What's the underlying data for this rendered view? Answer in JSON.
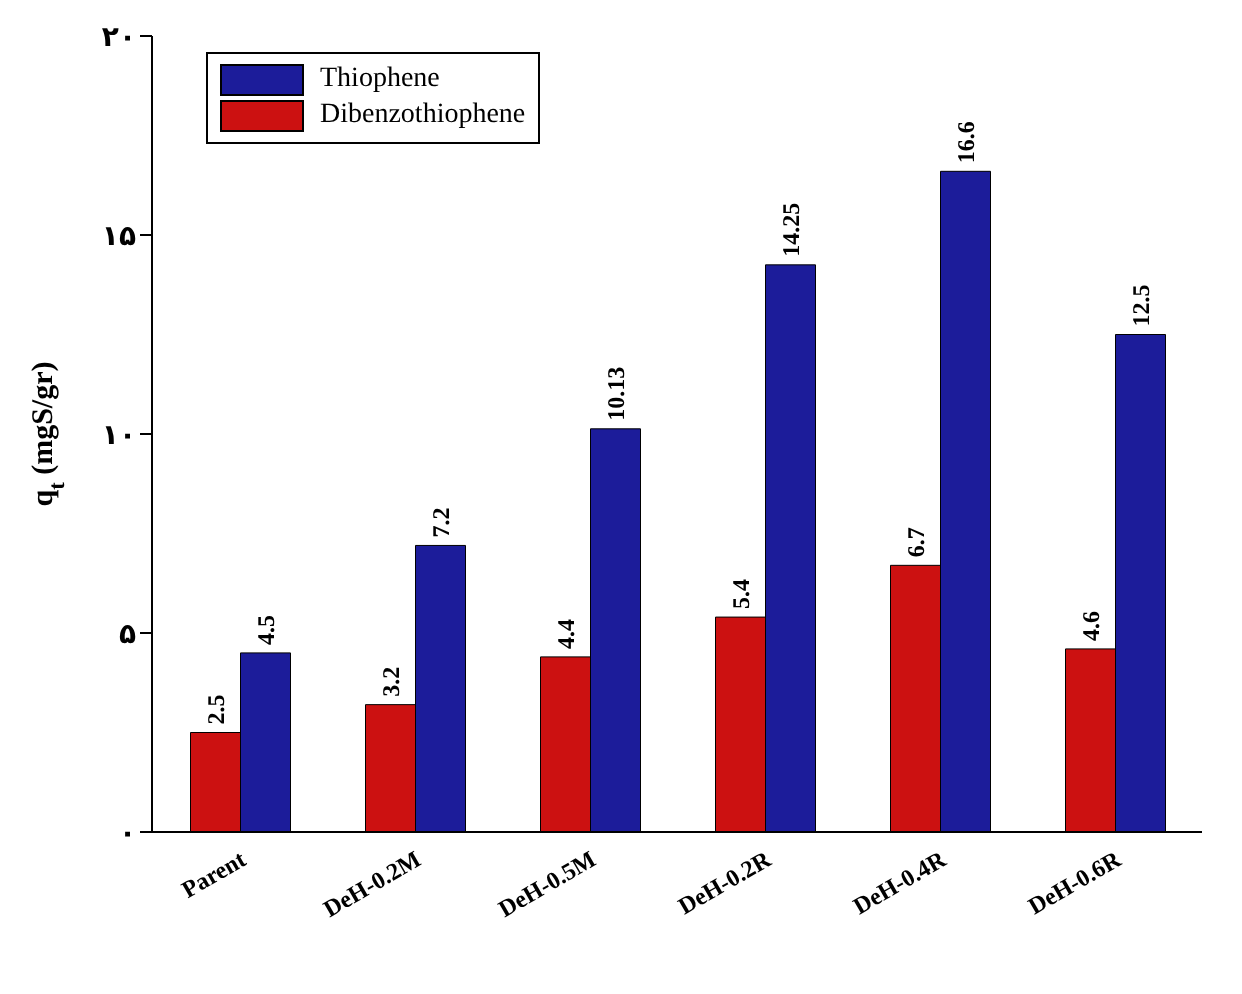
{
  "chart_data": {
    "type": "bar",
    "ylabel": "q$_{t}$ (mgS/gr)",
    "categories": [
      "Parent",
      "DeH-0.2M",
      "DeH-0.5M",
      "DeH-0.2R",
      "DeH-0.4R",
      "DeH-0.6R"
    ],
    "series": [
      {
        "name": "Dibenzothiophene",
        "color": "#cc1111",
        "values": [
          2.5,
          3.2,
          4.4,
          5.4,
          6.7,
          4.6
        ]
      },
      {
        "name": "Thiophene",
        "color": "#1c1c9a",
        "values": [
          4.5,
          7.2,
          10.13,
          14.25,
          16.6,
          12.5
        ]
      }
    ],
    "ylim": [
      0,
      20
    ],
    "yticks": [
      {
        "value": 0,
        "label": "۰"
      },
      {
        "value": 5,
        "label": "۵"
      },
      {
        "value": 10,
        "label": "۱۰"
      },
      {
        "value": 15,
        "label": "۱۵"
      },
      {
        "value": 20,
        "label": "۲۰"
      }
    ],
    "data_labels": true,
    "legend": "top left",
    "grid": false
  }
}
